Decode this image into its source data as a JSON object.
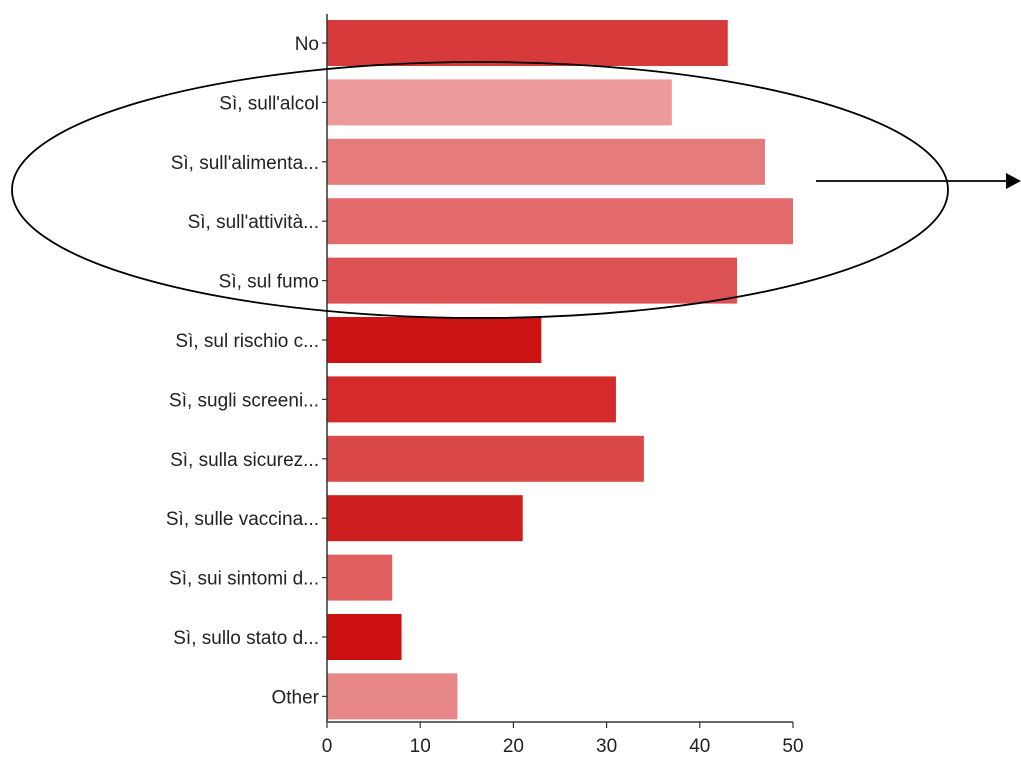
{
  "chart_data": {
    "type": "bar",
    "orientation": "horizontal",
    "categories": [
      "No",
      "Sì, sull'alcol",
      "Sì, sull'alimenta...",
      "Sì, sull'attività...",
      "Sì, sul fumo",
      "Sì, sul rischio c...",
      "Sì, sugli screeni...",
      "Sì, sulla sicurez...",
      "Sì, sulle vaccina...",
      "Sì, sui sintomi d...",
      "Sì, sullo stato d...",
      "Other"
    ],
    "values": [
      43,
      37,
      47,
      50,
      44,
      23,
      31,
      34,
      21,
      7,
      8,
      14
    ],
    "colors": [
      "#d63a3a",
      "#ec9a9a",
      "#e57b7b",
      "#e36b6b",
      "#dc5252",
      "#cc1414",
      "#d42a2a",
      "#db4848",
      "#cf1e1e",
      "#e06060",
      "#cc0f0f",
      "#e88888"
    ],
    "xlim": [
      0,
      50
    ],
    "xticks": [
      0,
      10,
      20,
      30,
      40,
      50
    ],
    "title": "",
    "xlabel": "",
    "ylabel": "",
    "grid": false,
    "legend": "none",
    "annotations": [
      {
        "type": "ellipse",
        "encloses": [
          "Sì, sull'alcol",
          "Sì, sull'alimenta...",
          "Sì, sull'attività...",
          "Sì, sul fumo"
        ]
      },
      {
        "type": "arrow",
        "direction": "right"
      }
    ]
  }
}
